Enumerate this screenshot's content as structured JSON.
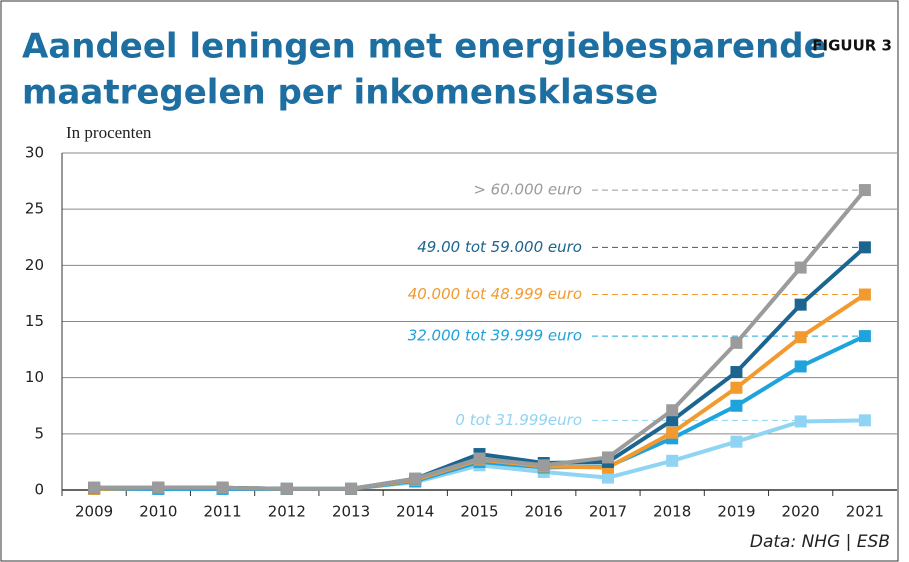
{
  "chart_data": {
    "type": "line",
    "title": [
      "Aandeel leningen met energiebesparende",
      "maatregelen per inkomensklasse"
    ],
    "figure_label": "FIGUUR 3",
    "y_axis_label": "In procenten",
    "source": "Data: NHG | ESB",
    "categories": [
      "2009",
      "2010",
      "2011",
      "2012",
      "2013",
      "2014",
      "2015",
      "2016",
      "2017",
      "2018",
      "2019",
      "2020",
      "2021"
    ],
    "ylim": [
      0,
      30
    ],
    "yticks": [
      0,
      5,
      10,
      15,
      20,
      25,
      30
    ],
    "grid": true,
    "series": [
      {
        "name": "> 60.000 euro",
        "color": "#9b9b9b",
        "values": [
          0.2,
          0.2,
          0.2,
          0.1,
          0.1,
          1.0,
          2.8,
          2.2,
          2.9,
          7.1,
          13.1,
          19.8,
          26.7
        ]
      },
      {
        "name": "49.00 tot 59.000 euro",
        "color": "#1b6590",
        "values": [
          0.2,
          0.2,
          0.2,
          0.1,
          0.1,
          1.0,
          3.2,
          2.4,
          2.5,
          6.2,
          10.5,
          16.5,
          21.6
        ]
      },
      {
        "name": "40.000 tot 48.999 euro",
        "color": "#f39a2e",
        "values": [
          0.1,
          0.2,
          0.2,
          0.1,
          0.1,
          0.9,
          2.7,
          2.1,
          2.0,
          5.1,
          9.1,
          13.6,
          17.4
        ]
      },
      {
        "name": "32.000 tot 39.999 euro",
        "color": "#1fa3dc",
        "values": [
          0.1,
          0.1,
          0.1,
          0.1,
          0.1,
          0.8,
          2.5,
          2.0,
          2.1,
          4.6,
          7.5,
          11.0,
          13.7
        ]
      },
      {
        "name": "0 tot 31.999euro",
        "color": "#8fd4f3",
        "values": [
          0.1,
          0.1,
          0.1,
          0.1,
          0.1,
          0.7,
          2.2,
          1.6,
          1.1,
          2.6,
          4.3,
          6.1,
          6.2
        ]
      }
    ]
  }
}
